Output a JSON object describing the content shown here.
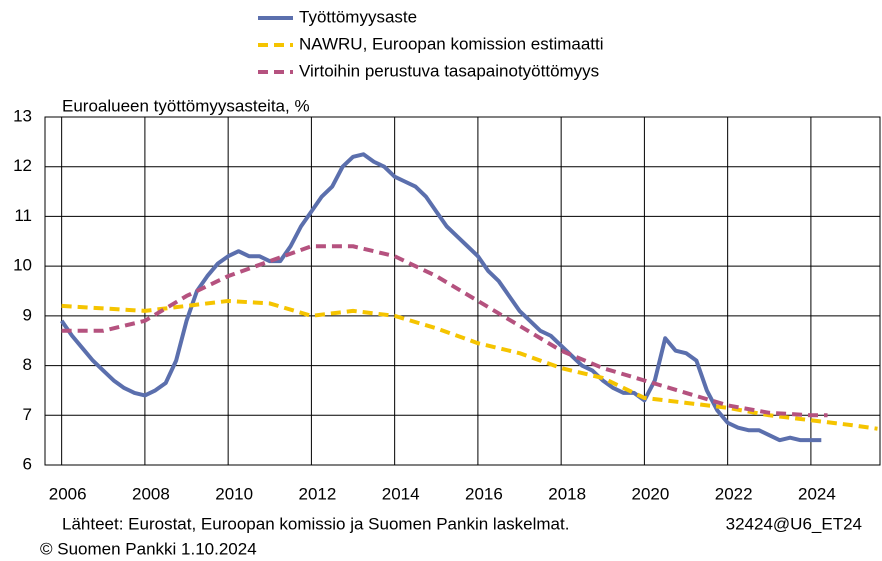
{
  "chart_data": {
    "type": "line",
    "title": "Euroalueen työttömyysasteita, %",
    "xlim": [
      2005.6,
      2025.66
    ],
    "xticks": [
      2006,
      2008,
      2010,
      2012,
      2014,
      2016,
      2018,
      2020,
      2022,
      2024
    ],
    "ylim": [
      6,
      13
    ],
    "yticks": [
      6,
      7,
      8,
      9,
      10,
      11,
      12,
      13
    ],
    "grid": true,
    "legend": "top",
    "series": [
      {
        "name": "Työttömyysaste",
        "color": "#5b6fad",
        "dash": false,
        "x": [
          2006.0,
          2006.25,
          2006.5,
          2006.75,
          2007.0,
          2007.25,
          2007.5,
          2007.75,
          2008.0,
          2008.25,
          2008.5,
          2008.75,
          2009.0,
          2009.25,
          2009.5,
          2009.75,
          2010.0,
          2010.25,
          2010.5,
          2010.75,
          2011.0,
          2011.25,
          2011.5,
          2011.75,
          2012.0,
          2012.25,
          2012.5,
          2012.75,
          2013.0,
          2013.25,
          2013.5,
          2013.75,
          2014.0,
          2014.25,
          2014.5,
          2014.75,
          2015.0,
          2015.25,
          2015.5,
          2015.75,
          2016.0,
          2016.25,
          2016.5,
          2016.75,
          2017.0,
          2017.25,
          2017.5,
          2017.75,
          2018.0,
          2018.25,
          2018.5,
          2018.75,
          2019.0,
          2019.25,
          2019.5,
          2019.75,
          2020.0,
          2020.25,
          2020.5,
          2020.75,
          2021.0,
          2021.25,
          2021.5,
          2021.75,
          2022.0,
          2022.25,
          2022.5,
          2022.75,
          2023.0,
          2023.25,
          2023.5,
          2023.75,
          2024.0,
          2024.25
        ],
        "values": [
          8.9,
          8.6,
          8.35,
          8.1,
          7.9,
          7.7,
          7.55,
          7.45,
          7.4,
          7.5,
          7.65,
          8.1,
          8.9,
          9.5,
          9.8,
          10.05,
          10.2,
          10.3,
          10.2,
          10.2,
          10.1,
          10.1,
          10.4,
          10.8,
          11.1,
          11.4,
          11.6,
          12.0,
          12.2,
          12.25,
          12.1,
          12.0,
          11.8,
          11.7,
          11.6,
          11.4,
          11.1,
          10.8,
          10.6,
          10.4,
          10.2,
          9.9,
          9.7,
          9.4,
          9.1,
          8.9,
          8.7,
          8.6,
          8.4,
          8.2,
          8.0,
          7.9,
          7.7,
          7.55,
          7.45,
          7.45,
          7.3,
          7.7,
          8.55,
          8.3,
          8.25,
          8.1,
          7.5,
          7.1,
          6.85,
          6.75,
          6.7,
          6.7,
          6.6,
          6.5,
          6.55,
          6.5,
          6.5,
          6.5
        ]
      },
      {
        "name": "NAWRU, Euroopan komission estimaatti",
        "color": "#f5c400",
        "dash": true,
        "x": [
          2006,
          2007,
          2008,
          2009,
          2010,
          2011,
          2012,
          2013,
          2014,
          2015,
          2016,
          2017,
          2018,
          2019,
          2020,
          2021,
          2022,
          2023,
          2024,
          2025,
          2025.6
        ],
        "values": [
          9.2,
          9.15,
          9.1,
          9.2,
          9.3,
          9.25,
          9.0,
          9.1,
          9.0,
          8.75,
          8.45,
          8.25,
          7.95,
          7.75,
          7.35,
          7.25,
          7.15,
          7.0,
          6.9,
          6.8,
          6.73
        ]
      },
      {
        "name": "Virtoihin perustuva tasapainotyöttömyys",
        "color": "#b5527f",
        "dash": true,
        "x": [
          2006,
          2007,
          2008,
          2009,
          2010,
          2011,
          2012,
          2013,
          2014,
          2015,
          2016,
          2017,
          2018,
          2019,
          2020,
          2021,
          2022,
          2023,
          2024,
          2024.4
        ],
        "values": [
          8.7,
          8.7,
          8.9,
          9.4,
          9.8,
          10.1,
          10.4,
          10.4,
          10.2,
          9.8,
          9.3,
          8.8,
          8.3,
          7.95,
          7.7,
          7.45,
          7.2,
          7.05,
          7.0,
          7.0
        ]
      }
    ],
    "source": "Lähteet: Eurostat, Euroopan komissio ja Suomen Pankin laskelmat.",
    "code": "32424@U6_ET24",
    "copyright": "© Suomen Pankki 1.10.2024"
  }
}
